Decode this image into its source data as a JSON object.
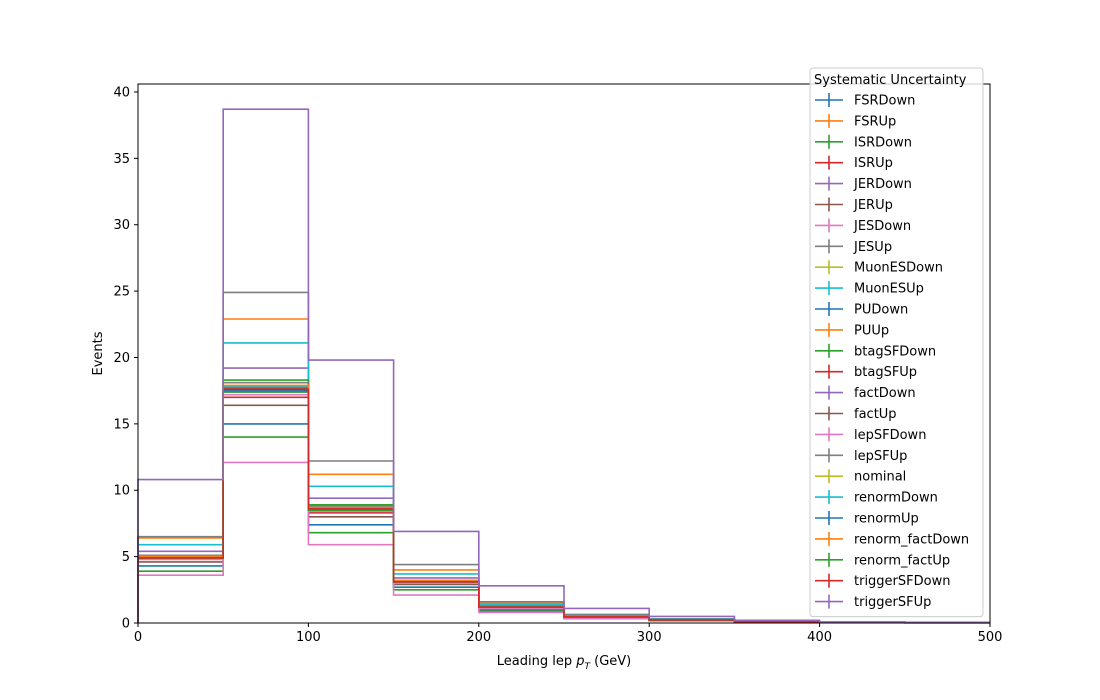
{
  "chart_data": {
    "type": "step-histogram",
    "xlabel_prefix": "Leading lep ",
    "xlabel_var": "p",
    "xlabel_sub": "T",
    "xlabel_suffix": " (GeV)",
    "ylabel": "Events",
    "xlim": [
      0,
      500
    ],
    "ylim": [
      0,
      40.6
    ],
    "xticks": [
      0,
      100,
      200,
      300,
      400,
      500
    ],
    "yticks": [
      0,
      5,
      10,
      15,
      20,
      25,
      30,
      35,
      40
    ],
    "grid": false,
    "legend_title": "Systematic Uncertainty",
    "legend_position": "top-right",
    "bin_edges": [
      0,
      50,
      100,
      150,
      200,
      250,
      300,
      350,
      400,
      450,
      500
    ],
    "series": [
      {
        "name": "FSRDown",
        "color": "#1f77b4",
        "values": [
          4.3,
          15.0,
          7.4,
          2.7,
          1.0,
          0.4,
          0.2,
          0.08,
          0.04,
          0.02
        ]
      },
      {
        "name": "FSRUp",
        "color": "#ff7f0e",
        "values": [
          6.4,
          22.9,
          11.2,
          4.0,
          1.5,
          0.6,
          0.3,
          0.12,
          0.06,
          0.03
        ]
      },
      {
        "name": "ISRDown",
        "color": "#2ca02c",
        "values": [
          3.9,
          14.0,
          6.8,
          2.5,
          0.9,
          0.35,
          0.18,
          0.07,
          0.03,
          0.02
        ]
      },
      {
        "name": "ISRUp",
        "color": "#d62728",
        "values": [
          4.8,
          17.0,
          8.3,
          3.0,
          1.1,
          0.45,
          0.22,
          0.09,
          0.04,
          0.02
        ]
      },
      {
        "name": "JERDown",
        "color": "#9467bd",
        "values": [
          5.4,
          19.2,
          9.4,
          3.4,
          1.3,
          0.5,
          0.25,
          0.1,
          0.05,
          0.02
        ]
      },
      {
        "name": "JERUp",
        "color": "#8c564b",
        "values": [
          4.6,
          16.4,
          8.0,
          2.9,
          1.1,
          0.43,
          0.21,
          0.09,
          0.04,
          0.02
        ]
      },
      {
        "name": "JESDown",
        "color": "#e377c2",
        "values": [
          3.6,
          12.1,
          5.9,
          2.1,
          0.8,
          0.32,
          0.16,
          0.06,
          0.03,
          0.01
        ]
      },
      {
        "name": "JESUp",
        "color": "#7f7f7f",
        "values": [
          6.5,
          24.9,
          12.2,
          4.4,
          1.6,
          0.65,
          0.32,
          0.13,
          0.06,
          0.03
        ]
      },
      {
        "name": "MuonESDown",
        "color": "#bcbd22",
        "values": [
          4.9,
          17.6,
          8.6,
          3.1,
          1.2,
          0.46,
          0.23,
          0.09,
          0.05,
          0.02
        ]
      },
      {
        "name": "MuonESUp",
        "color": "#17becf",
        "values": [
          5.9,
          21.1,
          10.3,
          3.7,
          1.4,
          0.55,
          0.27,
          0.11,
          0.05,
          0.03
        ]
      },
      {
        "name": "PUDown",
        "color": "#1f77b4",
        "values": [
          4.9,
          17.4,
          8.5,
          3.1,
          1.2,
          0.46,
          0.23,
          0.09,
          0.05,
          0.02
        ]
      },
      {
        "name": "PUUp",
        "color": "#ff7f0e",
        "values": [
          5.0,
          17.8,
          8.7,
          3.2,
          1.2,
          0.47,
          0.23,
          0.09,
          0.05,
          0.02
        ]
      },
      {
        "name": "btagSFDown",
        "color": "#2ca02c",
        "values": [
          5.1,
          18.3,
          8.9,
          3.2,
          1.2,
          0.48,
          0.24,
          0.1,
          0.05,
          0.02
        ]
      },
      {
        "name": "btagSFUp",
        "color": "#d62728",
        "values": [
          4.9,
          17.7,
          8.6,
          3.1,
          1.2,
          0.46,
          0.23,
          0.09,
          0.05,
          0.02
        ]
      },
      {
        "name": "factDown",
        "color": "#9467bd",
        "values": [
          4.9,
          17.5,
          8.5,
          3.1,
          1.2,
          0.46,
          0.23,
          0.09,
          0.05,
          0.02
        ]
      },
      {
        "name": "factUp",
        "color": "#8c564b",
        "values": [
          5.0,
          17.7,
          8.6,
          3.1,
          1.2,
          0.46,
          0.23,
          0.09,
          0.05,
          0.02
        ]
      },
      {
        "name": "lepSFDown",
        "color": "#e377c2",
        "values": [
          4.8,
          17.2,
          8.4,
          3.0,
          1.1,
          0.45,
          0.22,
          0.09,
          0.04,
          0.02
        ]
      },
      {
        "name": "lepSFUp",
        "color": "#7f7f7f",
        "values": [
          5.1,
          18.1,
          8.8,
          3.2,
          1.2,
          0.47,
          0.24,
          0.1,
          0.05,
          0.02
        ]
      },
      {
        "name": "nominal",
        "color": "#bcbd22",
        "values": [
          4.95,
          17.6,
          8.6,
          3.1,
          1.2,
          0.46,
          0.23,
          0.09,
          0.05,
          0.02
        ]
      },
      {
        "name": "renormDown",
        "color": "#17becf",
        "values": [
          5.0,
          17.8,
          8.7,
          3.1,
          1.2,
          0.47,
          0.23,
          0.09,
          0.05,
          0.02
        ]
      },
      {
        "name": "renormUp",
        "color": "#1f77b4",
        "values": [
          4.9,
          17.5,
          8.5,
          3.1,
          1.2,
          0.46,
          0.23,
          0.09,
          0.05,
          0.02
        ]
      },
      {
        "name": "renorm_factDown",
        "color": "#ff7f0e",
        "values": [
          5.0,
          17.9,
          8.7,
          3.2,
          1.2,
          0.47,
          0.24,
          0.09,
          0.05,
          0.02
        ]
      },
      {
        "name": "renorm_factUp",
        "color": "#2ca02c",
        "values": [
          4.9,
          17.4,
          8.5,
          3.1,
          1.2,
          0.46,
          0.23,
          0.09,
          0.05,
          0.02
        ]
      },
      {
        "name": "triggerSFDown",
        "color": "#d62728",
        "values": [
          4.9,
          17.6,
          8.6,
          3.1,
          1.2,
          0.46,
          0.23,
          0.09,
          0.05,
          0.02
        ]
      },
      {
        "name": "triggerSFUp",
        "color": "#9467bd",
        "values": [
          10.8,
          38.7,
          19.8,
          6.9,
          2.8,
          1.1,
          0.5,
          0.2,
          0.08,
          0.03
        ]
      }
    ]
  }
}
